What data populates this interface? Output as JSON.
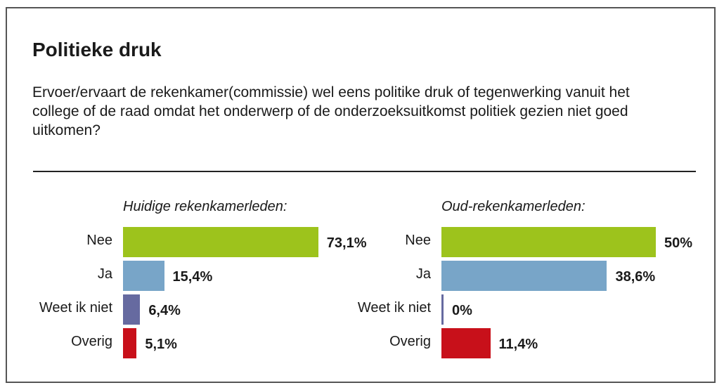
{
  "title": "Politieke druk",
  "question": "Ervoer/ervaart de rekenkamer(commissie) wel eens politike druk of tegenwerking vanuit het college of de raad omdat het onderwerp of de onderzoeksuitkomst politiek gezien niet goed uitkomen?",
  "chart_data": [
    {
      "type": "bar",
      "orientation": "horizontal",
      "title": "Huidige rekenkamerleden:",
      "categories": [
        "Nee",
        "Ja",
        "Weet ik niet",
        "Overig"
      ],
      "values": [
        73.1,
        15.4,
        6.4,
        5.1
      ],
      "labels": [
        "73,1%",
        "15,4%",
        "6,4%",
        "5,1%"
      ],
      "colors": [
        "#9dc31c",
        "#78a5c8",
        "#666aa0",
        "#c8101a"
      ],
      "grid": false
    },
    {
      "type": "bar",
      "orientation": "horizontal",
      "title": "Oud-rekenkamerleden:",
      "categories": [
        "Nee",
        "Ja",
        "Weet ik niet",
        "Overig"
      ],
      "values": [
        50,
        38.6,
        0,
        11.4
      ],
      "labels": [
        "50%",
        "38,6%",
        "0%",
        "11,4%"
      ],
      "colors": [
        "#9dc31c",
        "#78a5c8",
        "#666aa0",
        "#c8101a"
      ],
      "grid": false
    }
  ]
}
